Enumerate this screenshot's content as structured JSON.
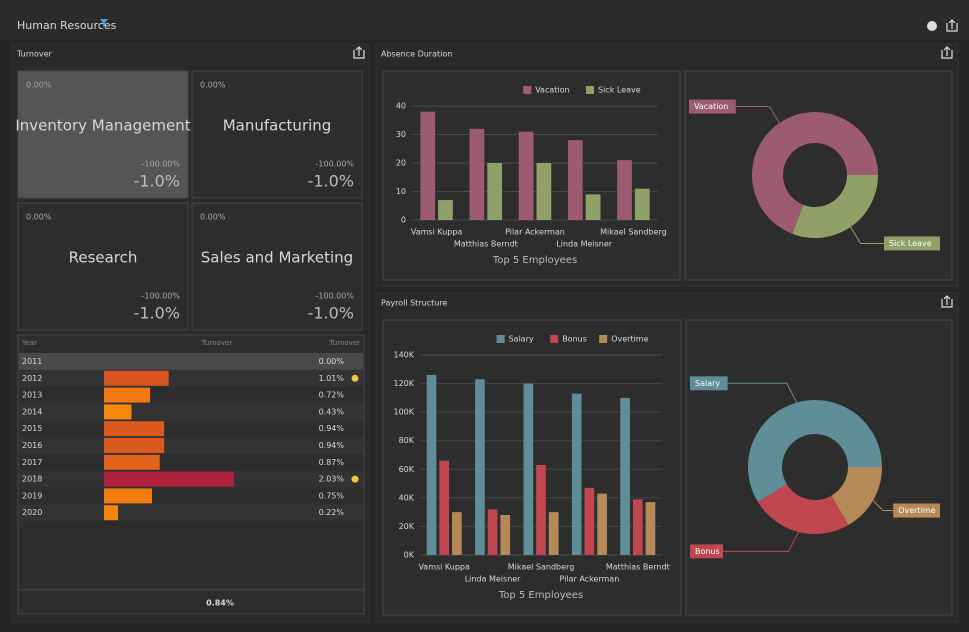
{
  "header": {
    "title": "Human Resources"
  },
  "turnover": {
    "title": "Turnover",
    "cards": [
      {
        "top": "0.00%",
        "name": "Inventory Management",
        "low": "-100.00%",
        "value": "-1.0%"
      },
      {
        "top": "0.00%",
        "name": "Manufacturing",
        "low": "-100.00%",
        "value": "-1.0%"
      },
      {
        "top": "0.00%",
        "name": "Research",
        "low": "-100.00%",
        "value": "-1.0%"
      },
      {
        "top": "0.00%",
        "name": "Sales and Marketing",
        "low": "-100.00%",
        "value": "-1.0%"
      }
    ],
    "grid": {
      "columns": [
        "Year",
        "Turnover",
        "Turnover"
      ],
      "rows": [
        {
          "year": "2011",
          "turnover": 0.0,
          "label": "0.00%",
          "color": "#e0661a"
        },
        {
          "year": "2012",
          "turnover": 1.01,
          "label": "1.01%",
          "color": "#d9541e",
          "highlight": true
        },
        {
          "year": "2013",
          "turnover": 0.72,
          "label": "0.72%",
          "color": "#f07a10"
        },
        {
          "year": "2014",
          "turnover": 0.43,
          "label": "0.43%",
          "color": "#f5870b"
        },
        {
          "year": "2015",
          "turnover": 0.94,
          "label": "0.94%",
          "color": "#dd5a1e"
        },
        {
          "year": "2016",
          "turnover": 0.94,
          "label": "0.94%",
          "color": "#dd5a1e"
        },
        {
          "year": "2017",
          "turnover": 0.87,
          "label": "0.87%",
          "color": "#e2631c"
        },
        {
          "year": "2018",
          "turnover": 2.03,
          "label": "2.03%",
          "color": "#b0213f",
          "highlight": true
        },
        {
          "year": "2019",
          "turnover": 0.75,
          "label": "0.75%",
          "color": "#f07d0e"
        },
        {
          "year": "2020",
          "turnover": 0.22,
          "label": "0.22%",
          "color": "#f5850a"
        }
      ],
      "total": "0.84%"
    }
  },
  "panels": [
    "Absence Duration",
    "Payroll Structure"
  ],
  "chart_data": [
    {
      "type": "bar",
      "x_label": "Top 5 Employees",
      "categories": [
        "Vamsi Kuppa",
        "Matthias Berndt",
        "Pilar Ackerman",
        "Linda Meisner",
        "Mikael Sandberg"
      ],
      "series": [
        {
          "name": "Vacation",
          "color": "#9c5b70",
          "values": [
            38,
            32,
            31,
            28,
            21
          ]
        },
        {
          "name": "Sick Leave",
          "color": "#8fa068",
          "values": [
            7,
            20,
            20,
            9,
            11
          ]
        }
      ],
      "ylim": [
        0,
        40
      ],
      "yticks": [
        0,
        10,
        20,
        30,
        40
      ],
      "grid": true
    },
    {
      "type": "pie",
      "categories": [
        "Vacation",
        "Sick Leave"
      ],
      "values": [
        150,
        67
      ],
      "colors": [
        "#9c5b70",
        "#8fa068"
      ]
    },
    {
      "type": "bar",
      "x_label": "Top 5 Employees",
      "categories": [
        "Vamsi Kuppa",
        "Linda Meisner",
        "Mikael Sandberg",
        "Pilar Ackerman",
        "Matthias Berndt"
      ],
      "series": [
        {
          "name": "Salary",
          "color": "#5f8d98",
          "values": [
            126000,
            123000,
            120000,
            113000,
            110000
          ]
        },
        {
          "name": "Bonus",
          "color": "#c0474f",
          "values": [
            66000,
            32000,
            63000,
            47000,
            39000
          ]
        },
        {
          "name": "Overtime",
          "color": "#b58a56",
          "values": [
            30000,
            28000,
            30000,
            43000,
            37000
          ]
        }
      ],
      "ylim": [
        0,
        140000
      ],
      "yticks": [
        {
          "value": 0,
          "label": "0K"
        },
        {
          "value": 20000,
          "label": "20K"
        },
        {
          "value": 40000,
          "label": "40K"
        },
        {
          "value": 60000,
          "label": "60K"
        },
        {
          "value": 80000,
          "label": "80K"
        },
        {
          "value": 100000,
          "label": "100K"
        },
        {
          "value": 120000,
          "label": "120K"
        },
        {
          "value": 140000,
          "label": "140K"
        }
      ],
      "grid": true
    },
    {
      "type": "pie",
      "categories": [
        "Salary",
        "Bonus",
        "Overtime"
      ],
      "values": [
        592000,
        247000,
        168000
      ],
      "colors": [
        "#5f8d98",
        "#c0474f",
        "#b58a56"
      ]
    }
  ]
}
